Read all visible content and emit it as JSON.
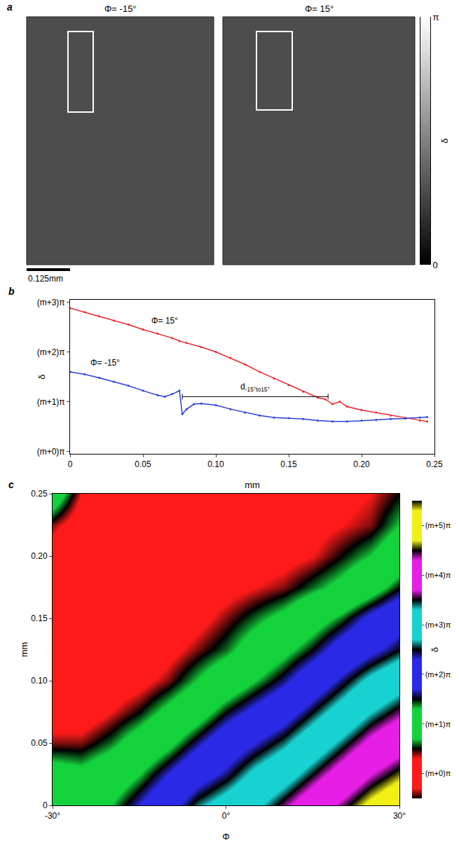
{
  "chart_data": [
    {
      "panel": "a",
      "type": "image",
      "images": [
        {
          "title": "Φ= -15°"
        },
        {
          "title": "Φ= 15°"
        }
      ],
      "scale_bar": "0.125mm",
      "colorbar": {
        "label": "δ",
        "range": [
          0,
          1
        ],
        "ticks": [
          {
            "value": 0,
            "label": "0"
          },
          {
            "value": 1,
            "label": "π"
          }
        ]
      }
    },
    {
      "panel": "b",
      "type": "line",
      "xlabel": "mm",
      "ylabel": "δ",
      "xlim": [
        0,
        0.25
      ],
      "xticks": [
        0,
        0.05,
        {
          "value": 0.1,
          "label": "0.10"
        },
        0.15,
        {
          "value": 0.2,
          "label": "0.20"
        },
        0.25
      ],
      "ylim": [
        -0.05,
        3.05
      ],
      "yticks": [
        {
          "value": 0,
          "label": "(m+0)π"
        },
        {
          "value": 1,
          "label": "(m+1)π"
        },
        {
          "value": 2,
          "label": "(m+2)π"
        },
        {
          "value": 3,
          "label": "(m+3)π"
        }
      ],
      "grid": false,
      "series": [
        {
          "name": "Φ= 15°",
          "color": "#e8262b",
          "marker": "dot",
          "line_style": "solid",
          "x": [
            0,
            0.01,
            0.02,
            0.03,
            0.04,
            0.05,
            0.06,
            0.07,
            0.075,
            0.08,
            0.09,
            0.1,
            0.11,
            0.12,
            0.13,
            0.14,
            0.15,
            0.16,
            0.17,
            0.175,
            0.18,
            0.185,
            0.19,
            0.2,
            0.21,
            0.22,
            0.23,
            0.24,
            0.245
          ],
          "values": [
            2.88,
            2.8,
            2.72,
            2.63,
            2.55,
            2.45,
            2.37,
            2.28,
            2.22,
            2.18,
            2.1,
            2.0,
            1.88,
            1.75,
            1.6,
            1.47,
            1.33,
            1.2,
            1.08,
            1.05,
            0.95,
            1.0,
            0.9,
            0.83,
            0.78,
            0.72,
            0.67,
            0.62,
            0.6
          ]
        },
        {
          "name": "Φ= -15°",
          "color": "#2c3fd6",
          "marker": "dot",
          "line_style": "solid",
          "x": [
            0,
            0.01,
            0.02,
            0.03,
            0.04,
            0.05,
            0.06,
            0.065,
            0.07,
            0.075,
            0.077,
            0.08,
            0.085,
            0.09,
            0.1,
            0.11,
            0.12,
            0.13,
            0.14,
            0.15,
            0.16,
            0.17,
            0.18,
            0.19,
            0.2,
            0.21,
            0.22,
            0.23,
            0.24,
            0.245
          ],
          "values": [
            1.6,
            1.55,
            1.48,
            1.4,
            1.32,
            1.22,
            1.13,
            1.1,
            1.15,
            1.22,
            0.75,
            0.85,
            0.95,
            0.96,
            0.93,
            0.85,
            0.78,
            0.72,
            0.68,
            0.67,
            0.65,
            0.62,
            0.6,
            0.6,
            0.62,
            0.63,
            0.65,
            0.66,
            0.68,
            0.69
          ]
        }
      ],
      "annotations": [
        {
          "text": "d",
          "subscript": "-15°to15°",
          "x": [
            0.077,
            0.177
          ],
          "y": 1.1
        }
      ]
    },
    {
      "panel": "c",
      "type": "heatmap",
      "xlabel": "Φ",
      "ylabel": "mm",
      "zlabel": "δ",
      "xlim": [
        -30,
        30
      ],
      "xticks": [
        {
          "value": -30,
          "label": "-30°"
        },
        {
          "value": 0,
          "label": "0°"
        },
        {
          "value": 30,
          "label": "30°"
        }
      ],
      "ylim": [
        0,
        0.25
      ],
      "yticks": [
        0,
        0.05,
        {
          "value": 0.1,
          "label": "0.10"
        },
        0.15,
        {
          "value": 0.2,
          "label": "0.20"
        },
        0.25
      ],
      "x": [
        -30,
        -25,
        -20,
        -15,
        -10,
        -5,
        0,
        5,
        10,
        15,
        20,
        25,
        30
      ],
      "y": [
        0,
        0.025,
        0.05,
        0.075,
        0.1,
        0.125,
        0.15,
        0.175,
        0.2,
        0.225,
        0.25
      ],
      "z": [
        [
          1.0,
          1.0,
          1.3,
          1.7,
          2.1,
          2.6,
          2.9,
          3.2,
          3.6,
          4.0,
          4.4,
          4.8,
          5.1
        ],
        [
          0.9,
          0.8,
          1.0,
          1.3,
          1.7,
          2.1,
          2.4,
          2.8,
          3.1,
          3.5,
          3.9,
          4.3,
          4.6
        ],
        [
          0.4,
          0.4,
          0.6,
          0.9,
          1.2,
          1.6,
          2.0,
          2.3,
          2.6,
          3.0,
          3.4,
          3.8,
          4.1
        ],
        [
          0.1,
          0.1,
          0.3,
          0.5,
          0.8,
          1.1,
          1.5,
          1.8,
          2.1,
          2.5,
          2.9,
          3.3,
          3.6
        ],
        [
          0.0,
          0.0,
          0.1,
          0.2,
          0.4,
          0.7,
          1.0,
          1.3,
          1.6,
          2.0,
          2.4,
          2.8,
          3.1
        ],
        [
          0.0,
          0.0,
          0.05,
          0.1,
          0.2,
          0.4,
          0.6,
          0.9,
          1.2,
          1.5,
          1.9,
          2.2,
          2.5
        ],
        [
          0.0,
          0.0,
          0.0,
          0.05,
          0.1,
          0.2,
          0.4,
          0.6,
          0.8,
          1.1,
          1.4,
          1.8,
          2.1
        ],
        [
          0.1,
          0.05,
          0.05,
          0.05,
          0.05,
          0.1,
          0.2,
          0.3,
          0.4,
          0.6,
          0.8,
          1.1,
          1.5
        ],
        [
          0.1,
          0.05,
          0.0,
          0.0,
          0.0,
          0.05,
          0.1,
          0.15,
          0.2,
          0.3,
          0.5,
          0.7,
          1.0
        ],
        [
          0.4,
          0.1,
          0.0,
          0.0,
          0.0,
          0.0,
          0.05,
          0.1,
          0.1,
          0.2,
          0.3,
          0.4,
          0.7
        ],
        [
          1.0,
          0.3,
          0.0,
          0.0,
          0.0,
          0.0,
          0.0,
          0.0,
          0.05,
          0.1,
          0.2,
          0.3,
          0.5
        ]
      ],
      "zlim": [
        -0.5,
        5.5
      ],
      "zticks": [
        {
          "value": 0,
          "label": "(m+0)π"
        },
        {
          "value": 1,
          "label": "(m+1)π"
        },
        {
          "value": 2,
          "label": "(m+2)π"
        },
        {
          "value": 3,
          "label": "(m+3)π"
        },
        {
          "value": 4,
          "label": "(m+4)π"
        },
        {
          "value": 5,
          "label": "(m+5)π"
        }
      ],
      "colors": [
        "#ff1a1a",
        "#14d23c",
        "#2a2ae6",
        "#18d2d2",
        "#e61ee6",
        "#f0f014"
      ]
    }
  ]
}
